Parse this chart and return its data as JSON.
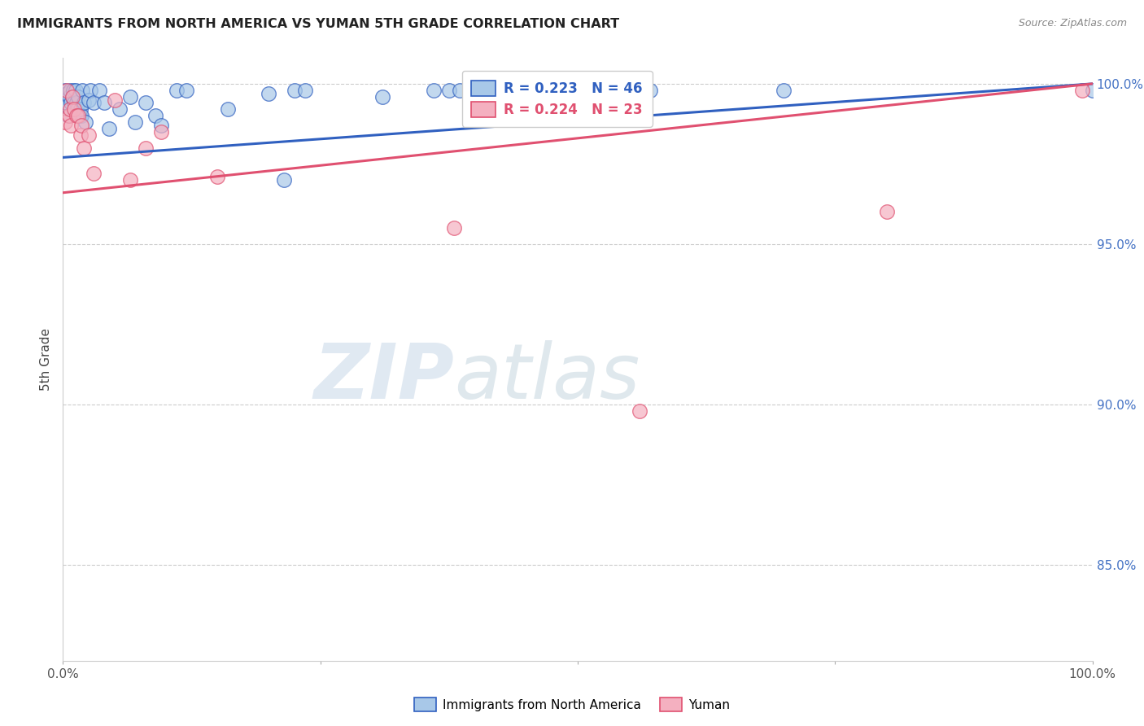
{
  "title": "IMMIGRANTS FROM NORTH AMERICA VS YUMAN 5TH GRADE CORRELATION CHART",
  "source": "Source: ZipAtlas.com",
  "ylabel": "5th Grade",
  "xlim": [
    0.0,
    1.0
  ],
  "ylim": [
    0.82,
    1.008
  ],
  "ytick_labels": [
    "85.0%",
    "90.0%",
    "95.0%",
    "100.0%"
  ],
  "ytick_positions": [
    0.85,
    0.9,
    0.95,
    1.0
  ],
  "legend_blue_label": "Immigrants from North America",
  "legend_pink_label": "Yuman",
  "r_blue": "R = 0.223",
  "n_blue": "N = 46",
  "r_pink": "R = 0.224",
  "n_pink": "N = 23",
  "blue_color": "#a8c8e8",
  "pink_color": "#f4b0c0",
  "blue_line_color": "#3060c0",
  "pink_line_color": "#e05070",
  "watermark_zip": "ZIP",
  "watermark_atlas": "atlas",
  "blue_scatter_x": [
    0.002,
    0.003,
    0.004,
    0.005,
    0.006,
    0.007,
    0.008,
    0.009,
    0.01,
    0.011,
    0.012,
    0.013,
    0.014,
    0.015,
    0.016,
    0.017,
    0.018,
    0.019,
    0.02,
    0.022,
    0.025,
    0.027,
    0.03,
    0.035,
    0.04,
    0.045,
    0.055,
    0.065,
    0.07,
    0.08,
    0.09,
    0.095,
    0.11,
    0.12,
    0.16,
    0.2,
    0.215,
    0.225,
    0.235,
    0.31,
    0.36,
    0.375,
    0.385,
    0.57,
    0.7,
    1.0
  ],
  "blue_scatter_y": [
    0.998,
    0.994,
    0.997,
    0.99,
    0.996,
    0.998,
    0.994,
    0.996,
    0.998,
    0.994,
    0.998,
    0.994,
    0.992,
    0.996,
    0.99,
    0.992,
    0.99,
    0.998,
    0.994,
    0.988,
    0.995,
    0.998,
    0.994,
    0.998,
    0.994,
    0.986,
    0.992,
    0.996,
    0.988,
    0.994,
    0.99,
    0.987,
    0.998,
    0.998,
    0.992,
    0.997,
    0.97,
    0.998,
    0.998,
    0.996,
    0.998,
    0.998,
    0.998,
    0.998,
    0.998,
    0.998
  ],
  "pink_scatter_x": [
    0.002,
    0.004,
    0.006,
    0.007,
    0.008,
    0.009,
    0.011,
    0.013,
    0.015,
    0.017,
    0.018,
    0.02,
    0.025,
    0.03,
    0.05,
    0.065,
    0.08,
    0.095,
    0.15,
    0.38,
    0.56,
    0.8,
    0.99
  ],
  "pink_scatter_y": [
    0.988,
    0.998,
    0.99,
    0.992,
    0.987,
    0.996,
    0.992,
    0.99,
    0.99,
    0.984,
    0.987,
    0.98,
    0.984,
    0.972,
    0.995,
    0.97,
    0.98,
    0.985,
    0.971,
    0.955,
    0.898,
    0.96,
    0.998
  ],
  "blue_line_x": [
    0.0,
    1.0
  ],
  "blue_line_y": [
    0.977,
    1.0
  ],
  "pink_line_x": [
    0.0,
    1.0
  ],
  "pink_line_y": [
    0.966,
    1.0
  ]
}
